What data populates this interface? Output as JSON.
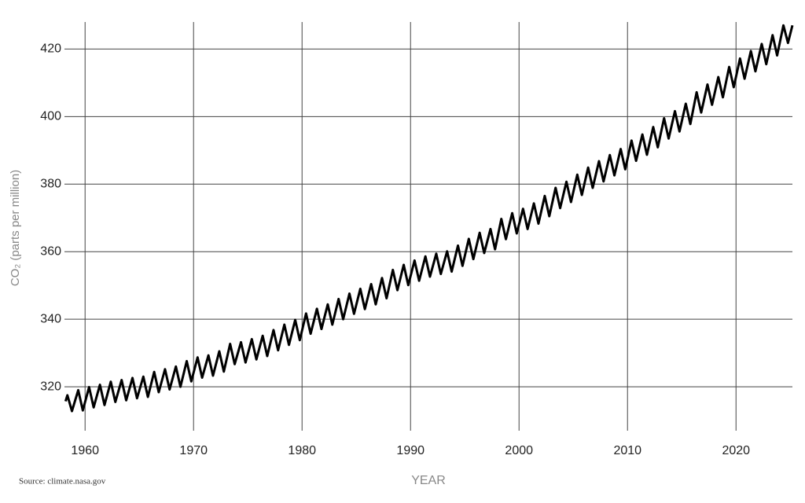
{
  "chart_data": {
    "type": "line",
    "x_label": "YEAR",
    "y_label": "CO₂ (parts per million)",
    "source": "Source: climate.nasa.gov",
    "color": "#000000",
    "grid": true,
    "xlim": [
      1958.1,
      2025.2
    ],
    "xticks": [
      1960,
      1970,
      1980,
      1990,
      2000,
      2010,
      2020
    ],
    "ylim": [
      307,
      428
    ],
    "yticks": [
      320,
      340,
      360,
      380,
      400,
      420
    ],
    "x": [
      1958.2,
      1958.37,
      1958.79,
      1959.37,
      1959.79,
      1960.37,
      1960.79,
      1961.37,
      1961.79,
      1962.37,
      1962.79,
      1963.37,
      1963.79,
      1964.37,
      1964.79,
      1965.37,
      1965.79,
      1966.37,
      1966.79,
      1967.37,
      1967.79,
      1968.37,
      1968.79,
      1969.37,
      1969.79,
      1970.37,
      1970.79,
      1971.37,
      1971.79,
      1972.37,
      1972.79,
      1973.37,
      1973.79,
      1974.37,
      1974.79,
      1975.37,
      1975.79,
      1976.37,
      1976.79,
      1977.37,
      1977.79,
      1978.37,
      1978.79,
      1979.37,
      1979.79,
      1980.37,
      1980.79,
      1981.37,
      1981.79,
      1982.37,
      1982.79,
      1983.37,
      1983.79,
      1984.37,
      1984.79,
      1985.37,
      1985.79,
      1986.37,
      1986.79,
      1987.37,
      1987.79,
      1988.37,
      1988.79,
      1989.37,
      1989.79,
      1990.37,
      1990.79,
      1991.37,
      1991.79,
      1992.37,
      1992.79,
      1993.37,
      1993.79,
      1994.37,
      1994.79,
      1995.37,
      1995.79,
      1996.37,
      1996.79,
      1997.37,
      1997.79,
      1998.37,
      1998.79,
      1999.37,
      1999.79,
      2000.37,
      2000.79,
      2001.37,
      2001.79,
      2002.37,
      2002.79,
      2003.37,
      2003.79,
      2004.37,
      2004.79,
      2005.37,
      2005.79,
      2006.37,
      2006.79,
      2007.37,
      2007.79,
      2008.37,
      2008.79,
      2009.37,
      2009.79,
      2010.37,
      2010.79,
      2011.37,
      2011.79,
      2012.37,
      2012.79,
      2013.37,
      2013.79,
      2014.37,
      2014.79,
      2015.37,
      2015.79,
      2016.37,
      2016.79,
      2017.37,
      2017.79,
      2018.37,
      2018.79,
      2019.37,
      2019.79,
      2020.37,
      2020.79,
      2021.37,
      2021.79,
      2022.37,
      2022.79,
      2023.37,
      2023.79,
      2024.37,
      2024.79,
      2025.2
    ],
    "values": [
      315.7,
      317.5,
      312.8,
      319.0,
      313.0,
      319.9,
      313.9,
      320.6,
      314.6,
      321.5,
      315.5,
      322.0,
      316.0,
      322.6,
      316.6,
      323.0,
      317.0,
      324.4,
      318.4,
      325.2,
      319.2,
      326.0,
      320.0,
      327.6,
      321.6,
      328.7,
      322.7,
      329.3,
      323.3,
      330.5,
      324.5,
      332.7,
      326.7,
      333.2,
      327.2,
      334.1,
      328.1,
      335.1,
      329.1,
      336.8,
      330.8,
      338.4,
      332.4,
      339.8,
      333.8,
      341.7,
      335.7,
      343.1,
      337.1,
      344.4,
      338.4,
      346.0,
      340.0,
      347.6,
      341.6,
      349.0,
      343.0,
      350.4,
      344.4,
      352.2,
      346.2,
      354.6,
      348.6,
      356.1,
      350.1,
      357.4,
      351.4,
      358.6,
      352.6,
      359.4,
      353.4,
      360.1,
      354.1,
      361.8,
      355.8,
      363.8,
      357.8,
      365.6,
      359.6,
      366.7,
      360.7,
      369.7,
      363.7,
      371.4,
      365.4,
      372.7,
      366.7,
      374.3,
      368.3,
      376.5,
      370.5,
      378.9,
      372.9,
      380.7,
      374.7,
      382.8,
      376.8,
      384.9,
      378.9,
      386.8,
      380.8,
      388.6,
      382.6,
      390.4,
      384.4,
      392.9,
      386.9,
      394.7,
      388.7,
      396.9,
      390.9,
      399.5,
      393.5,
      401.6,
      395.6,
      403.8,
      397.8,
      407.2,
      401.2,
      409.5,
      403.5,
      411.7,
      405.7,
      414.7,
      408.7,
      417.2,
      411.2,
      419.4,
      413.4,
      421.5,
      415.5,
      424.1,
      418.1,
      427.0,
      421.8,
      427.0
    ]
  }
}
